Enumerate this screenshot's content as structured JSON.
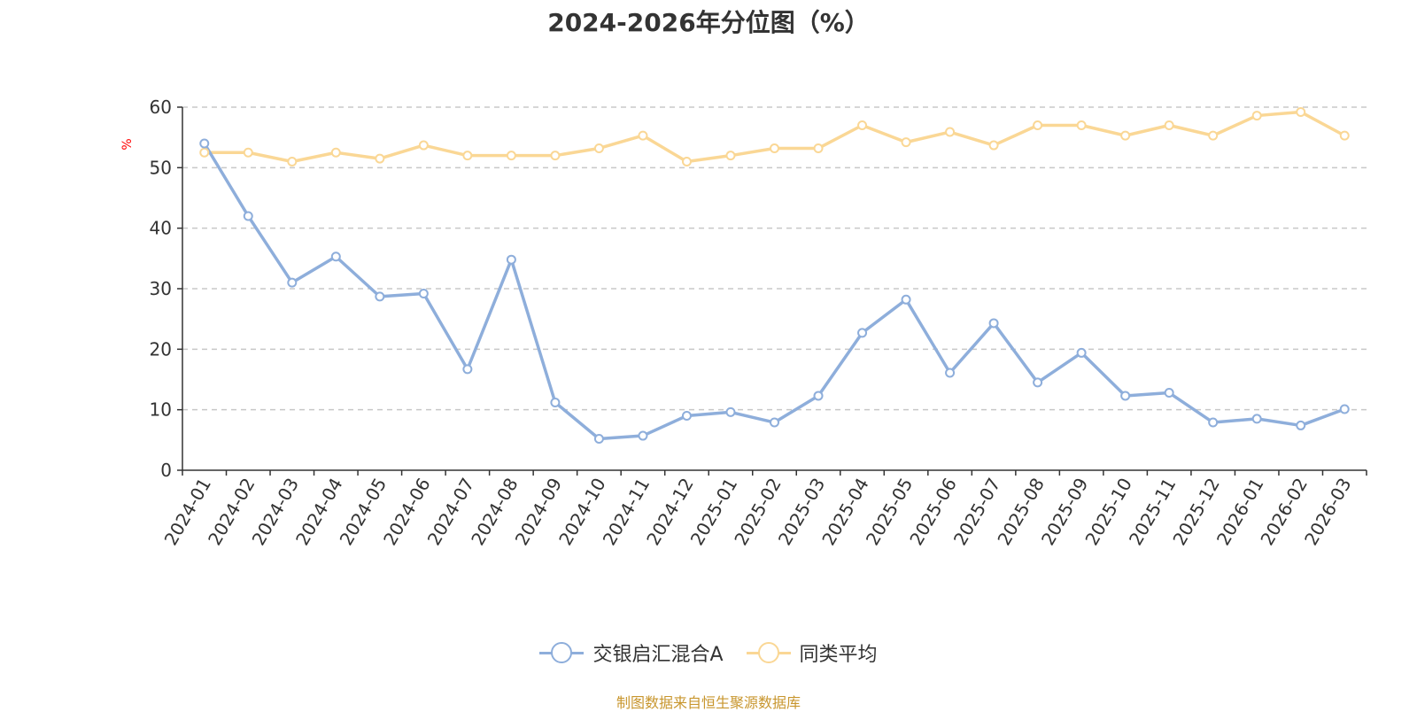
{
  "chart_data": {
    "type": "line",
    "title": "2024-2026年分位图（%）",
    "ylabel": "%",
    "ylim": [
      0,
      60
    ],
    "yticks": [
      0,
      10,
      20,
      30,
      40,
      50,
      60
    ],
    "grid": true,
    "legend_position": "bottom",
    "categories": [
      "2024-01",
      "2024-02",
      "2024-03",
      "2024-04",
      "2024-05",
      "2024-06",
      "2024-07",
      "2024-08",
      "2024-09",
      "2024-10",
      "2024-11",
      "2024-12",
      "2025-01",
      "2025-02",
      "2025-03",
      "2025-04",
      "2025-05",
      "2025-06",
      "2025-07",
      "2025-08",
      "2025-09",
      "2025-10",
      "2025-11",
      "2025-12",
      "2026-01",
      "2026-02",
      "2026-03"
    ],
    "series": [
      {
        "name": "交银启汇混合A",
        "color": "#8eaedb",
        "values": [
          54.0,
          42.0,
          31.0,
          35.3,
          28.7,
          29.2,
          16.7,
          34.8,
          11.2,
          5.2,
          5.7,
          9.0,
          9.6,
          7.9,
          12.3,
          22.7,
          28.2,
          16.1,
          24.3,
          14.5,
          19.4,
          12.3,
          12.8,
          7.9,
          8.5,
          7.4,
          10.1
        ]
      },
      {
        "name": "同类平均",
        "color": "#fad795",
        "values": [
          52.5,
          52.5,
          51.0,
          52.5,
          51.5,
          53.7,
          52.0,
          52.0,
          52.0,
          53.2,
          55.3,
          51.0,
          52.0,
          53.2,
          53.2,
          57.0,
          54.2,
          55.9,
          53.7,
          57.0,
          57.0,
          55.3,
          57.0,
          55.3,
          58.6,
          59.2,
          55.3
        ]
      }
    ]
  },
  "footer": {
    "source": "制图数据来自恒生聚源数据库"
  }
}
